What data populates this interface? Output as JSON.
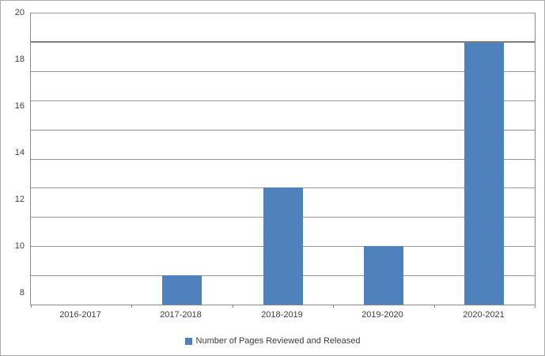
{
  "chart_data": {
    "type": "bar",
    "title": "",
    "categories": [
      "2016-2017",
      "2017-2018",
      "2018-2019",
      "2019-2020",
      "2020-2021"
    ],
    "series": [
      {
        "name": "Number of Pages Reviewed and Released",
        "values": [
          7.5,
          8.75,
          12.5,
          10,
          18.75
        ],
        "color": "#4F81BD"
      }
    ],
    "xlabel": "",
    "ylabel": "",
    "ylim": [
      7.5,
      20
    ],
    "ytick_labels": [
      20,
      18,
      16,
      14,
      12,
      10,
      8
    ],
    "gridline_step": 1.25,
    "grid": true,
    "emphasized_gridline": 18.75,
    "legend_position": "bottom",
    "colors": {
      "bar": "#4F81BD",
      "gridline": "#9A9A9A",
      "emphasized_line": "#7F7F7F",
      "axis": "#8C8C8C",
      "text": "#404040",
      "chart_border": "#ABABAB",
      "background": "#FFFFFF"
    }
  }
}
